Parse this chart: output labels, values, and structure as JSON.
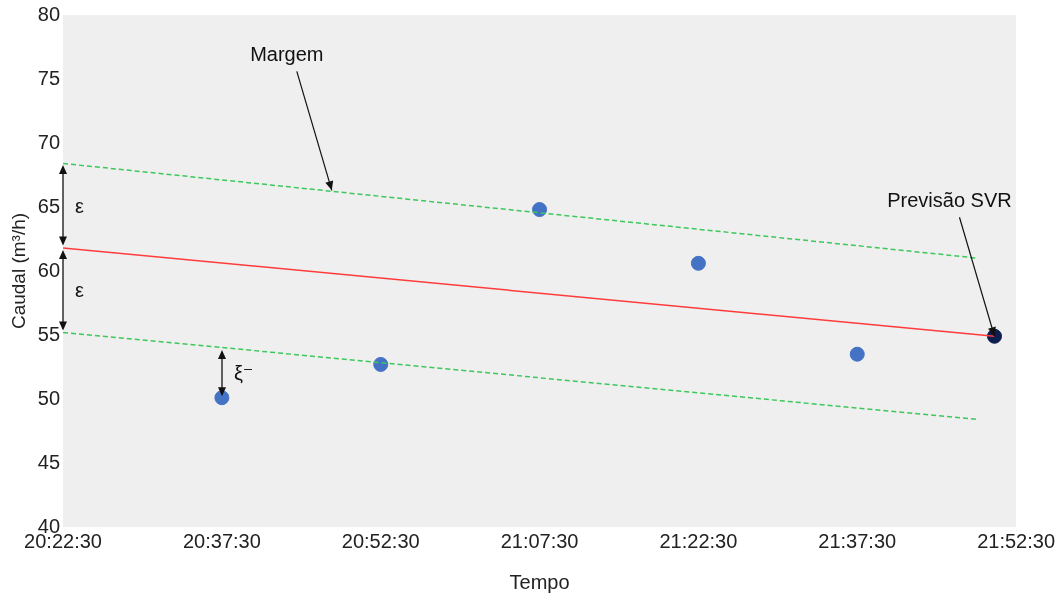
{
  "chart_data": {
    "type": "scatter",
    "xlabel": "Tempo",
    "ylabel": "Caudal (m³/h)",
    "xlim": [
      20.375,
      21.875
    ],
    "ylim": [
      40,
      80
    ],
    "xticks": [
      {
        "value": 20.375,
        "label": "20:22:30"
      },
      {
        "value": 20.625,
        "label": "20:37:30"
      },
      {
        "value": 20.875,
        "label": "20:52:30"
      },
      {
        "value": 21.125,
        "label": "21:07:30"
      },
      {
        "value": 21.375,
        "label": "21:22:30"
      },
      {
        "value": 21.625,
        "label": "21:37:30"
      },
      {
        "value": 21.875,
        "label": "21:52:30"
      }
    ],
    "yticks": [
      40,
      45,
      50,
      55,
      60,
      65,
      70,
      75,
      80
    ],
    "grid": false,
    "legend": false,
    "series": [
      {
        "type": "line",
        "color": "#3cc85a",
        "line_style": "dashed",
        "x": [
          20.375,
          21.815
        ],
        "values": [
          68.4,
          61.0
        ]
      },
      {
        "type": "line",
        "color": "#ff3b3b",
        "line_style": "solid",
        "x": [
          20.375,
          21.841
        ],
        "values": [
          61.8,
          54.9
        ]
      },
      {
        "type": "line",
        "color": "#3cc85a",
        "line_style": "dashed",
        "x": [
          20.375,
          21.815
        ],
        "values": [
          55.2,
          48.4
        ]
      },
      {
        "type": "scatter",
        "marker": "circle",
        "color": "#4472c4",
        "x": [
          20.625,
          20.875,
          21.125,
          21.375,
          21.625
        ],
        "values": [
          50.1,
          52.7,
          64.8,
          60.6,
          53.5
        ]
      },
      {
        "type": "scatter",
        "marker": "circle",
        "color": "#0c1f4f",
        "x": [
          21.841
        ],
        "values": [
          54.9
        ]
      }
    ],
    "annotations": [
      {
        "text": "Margem",
        "x": 20.798,
        "y": 66.3
      },
      {
        "text": "Previsão SVR",
        "x": 21.841,
        "y": 54.9
      },
      "ε",
      "ε",
      "ξ⁻"
    ]
  }
}
